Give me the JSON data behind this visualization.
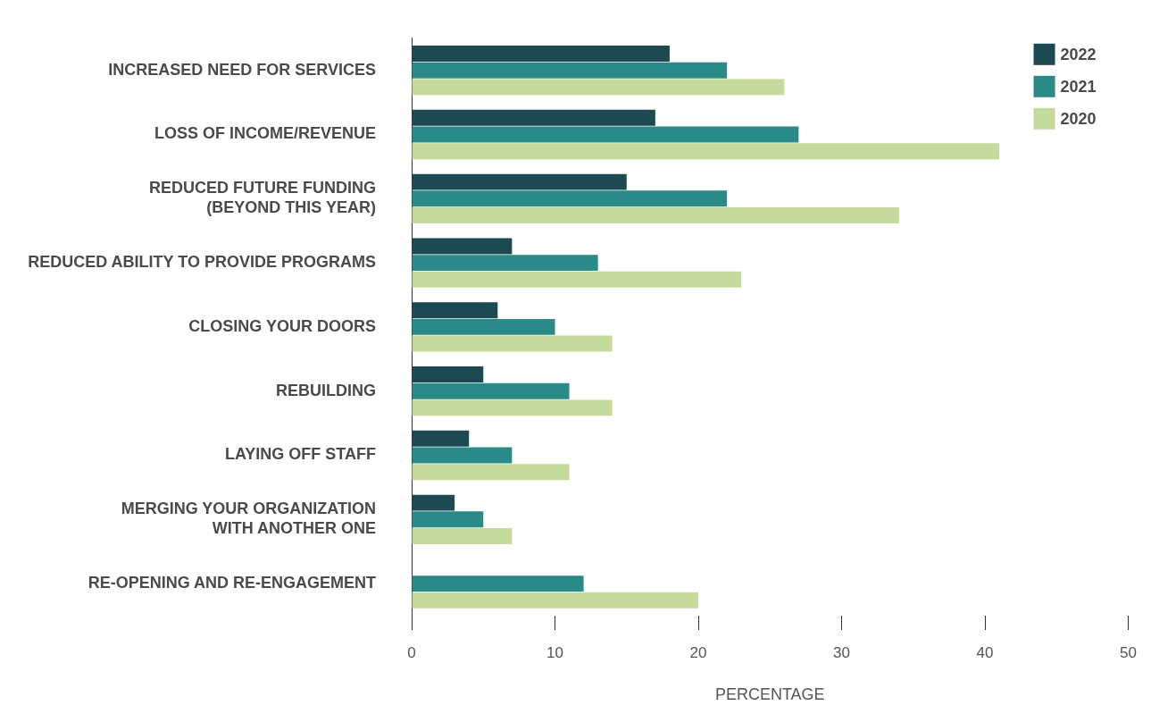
{
  "chart_data": {
    "type": "bar",
    "orientation": "horizontal",
    "xlabel": "PERCENTAGE",
    "categories": [
      "INCREASED NEED FOR SERVICES",
      "LOSS OF INCOME/REVENUE",
      "REDUCED FUTURE FUNDING (BEYOND THIS YEAR)",
      "REDUCED ABILITY TO PROVIDE PROGRAMS",
      "CLOSING YOUR DOORS",
      "REBUILDING",
      "LAYING OFF STAFF",
      "MERGING YOUR ORGANIZATION WITH ANOTHER ONE",
      "RE-OPENING AND RE-ENGAGEMENT"
    ],
    "series": [
      {
        "name": "2022",
        "color": "#1d4a52",
        "values": [
          18,
          17,
          15,
          7,
          6,
          5,
          4,
          3,
          null
        ]
      },
      {
        "name": "2021",
        "color": "#2a8a87",
        "values": [
          22,
          27,
          22,
          13,
          10,
          11,
          7,
          5,
          12
        ]
      },
      {
        "name": "2020",
        "color": "#c5db9e",
        "values": [
          26,
          41,
          34,
          23,
          14,
          14,
          11,
          7,
          20
        ]
      }
    ],
    "xlim": [
      0,
      50
    ],
    "xticks": [
      0,
      10,
      20,
      30,
      40,
      50
    ],
    "grid": false,
    "legend": "top right"
  }
}
